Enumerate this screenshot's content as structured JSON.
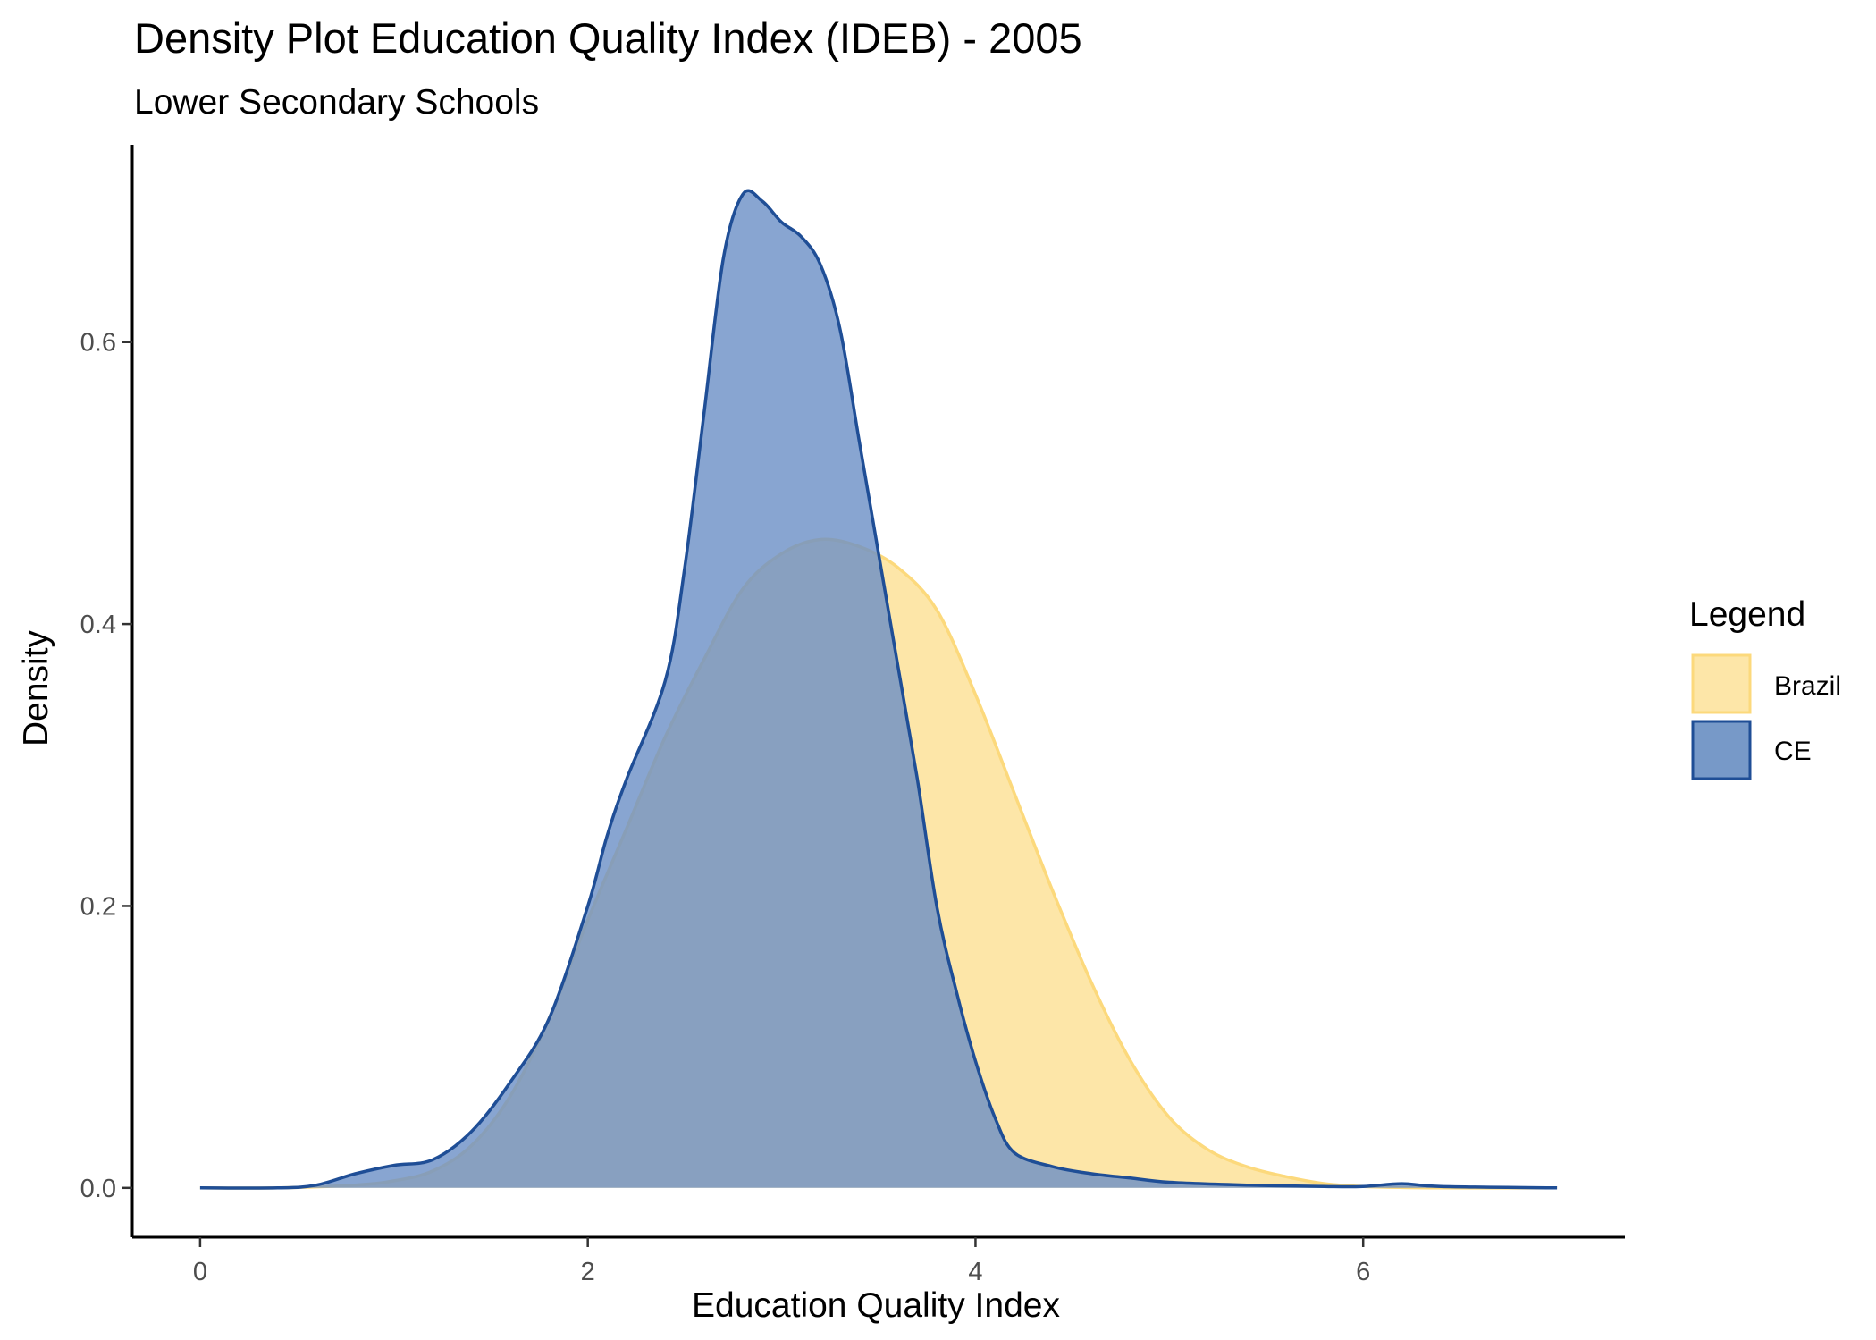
{
  "chart_data": {
    "type": "area",
    "title": "Density Plot Education Quality Index (IDEB) - 2005",
    "subtitle": "Lower Secondary Schools",
    "xlabel": "Education Quality Index",
    "ylabel": "Density",
    "xlim": [
      -0.35,
      7.35
    ],
    "ylim": [
      -0.035,
      0.74
    ],
    "x_ticks": [
      0,
      2,
      4,
      6
    ],
    "x_tick_labels": [
      "0",
      "2",
      "4",
      "6"
    ],
    "y_ticks": [
      0.0,
      0.2,
      0.4,
      0.6
    ],
    "y_tick_labels": [
      "0.0",
      "0.2",
      "0.4",
      "0.6"
    ],
    "grid": false,
    "legend": {
      "title": "Legend",
      "position": "right"
    },
    "series": [
      {
        "name": "Brazil",
        "fill": "#fde6a8",
        "stroke": "#fcd97c",
        "points": [
          [
            0.0,
            0.0
          ],
          [
            0.4,
            0.0
          ],
          [
            0.8,
            0.002
          ],
          [
            1.0,
            0.005
          ],
          [
            1.2,
            0.012
          ],
          [
            1.4,
            0.03
          ],
          [
            1.6,
            0.065
          ],
          [
            1.8,
            0.12
          ],
          [
            2.0,
            0.19
          ],
          [
            2.2,
            0.255
          ],
          [
            2.4,
            0.32
          ],
          [
            2.6,
            0.375
          ],
          [
            2.8,
            0.425
          ],
          [
            3.0,
            0.45
          ],
          [
            3.2,
            0.46
          ],
          [
            3.4,
            0.455
          ],
          [
            3.6,
            0.44
          ],
          [
            3.8,
            0.41
          ],
          [
            4.0,
            0.35
          ],
          [
            4.2,
            0.28
          ],
          [
            4.4,
            0.21
          ],
          [
            4.6,
            0.145
          ],
          [
            4.8,
            0.09
          ],
          [
            5.0,
            0.05
          ],
          [
            5.2,
            0.027
          ],
          [
            5.4,
            0.015
          ],
          [
            5.6,
            0.008
          ],
          [
            5.8,
            0.003
          ],
          [
            6.0,
            0.001
          ],
          [
            6.4,
            0.0
          ],
          [
            7.0,
            0.0
          ]
        ]
      },
      {
        "name": "CE",
        "fill": "#6a8fc5",
        "stroke": "#1f4e96",
        "points": [
          [
            0.0,
            0.0
          ],
          [
            0.4,
            0.0
          ],
          [
            0.6,
            0.002
          ],
          [
            0.8,
            0.01
          ],
          [
            1.0,
            0.016
          ],
          [
            1.2,
            0.02
          ],
          [
            1.4,
            0.04
          ],
          [
            1.6,
            0.075
          ],
          [
            1.8,
            0.12
          ],
          [
            2.0,
            0.2
          ],
          [
            2.1,
            0.25
          ],
          [
            2.2,
            0.29
          ],
          [
            2.4,
            0.36
          ],
          [
            2.5,
            0.44
          ],
          [
            2.6,
            0.55
          ],
          [
            2.7,
            0.66
          ],
          [
            2.8,
            0.705
          ],
          [
            2.9,
            0.7
          ],
          [
            3.0,
            0.685
          ],
          [
            3.1,
            0.675
          ],
          [
            3.2,
            0.655
          ],
          [
            3.3,
            0.61
          ],
          [
            3.4,
            0.53
          ],
          [
            3.5,
            0.45
          ],
          [
            3.6,
            0.37
          ],
          [
            3.7,
            0.29
          ],
          [
            3.8,
            0.2
          ],
          [
            3.9,
            0.14
          ],
          [
            4.0,
            0.09
          ],
          [
            4.1,
            0.05
          ],
          [
            4.2,
            0.025
          ],
          [
            4.4,
            0.015
          ],
          [
            4.6,
            0.01
          ],
          [
            4.8,
            0.007
          ],
          [
            5.0,
            0.004
          ],
          [
            5.4,
            0.002
          ],
          [
            5.8,
            0.001
          ],
          [
            6.0,
            0.001
          ],
          [
            6.2,
            0.003
          ],
          [
            6.4,
            0.001
          ],
          [
            7.0,
            0.0
          ]
        ]
      }
    ]
  }
}
